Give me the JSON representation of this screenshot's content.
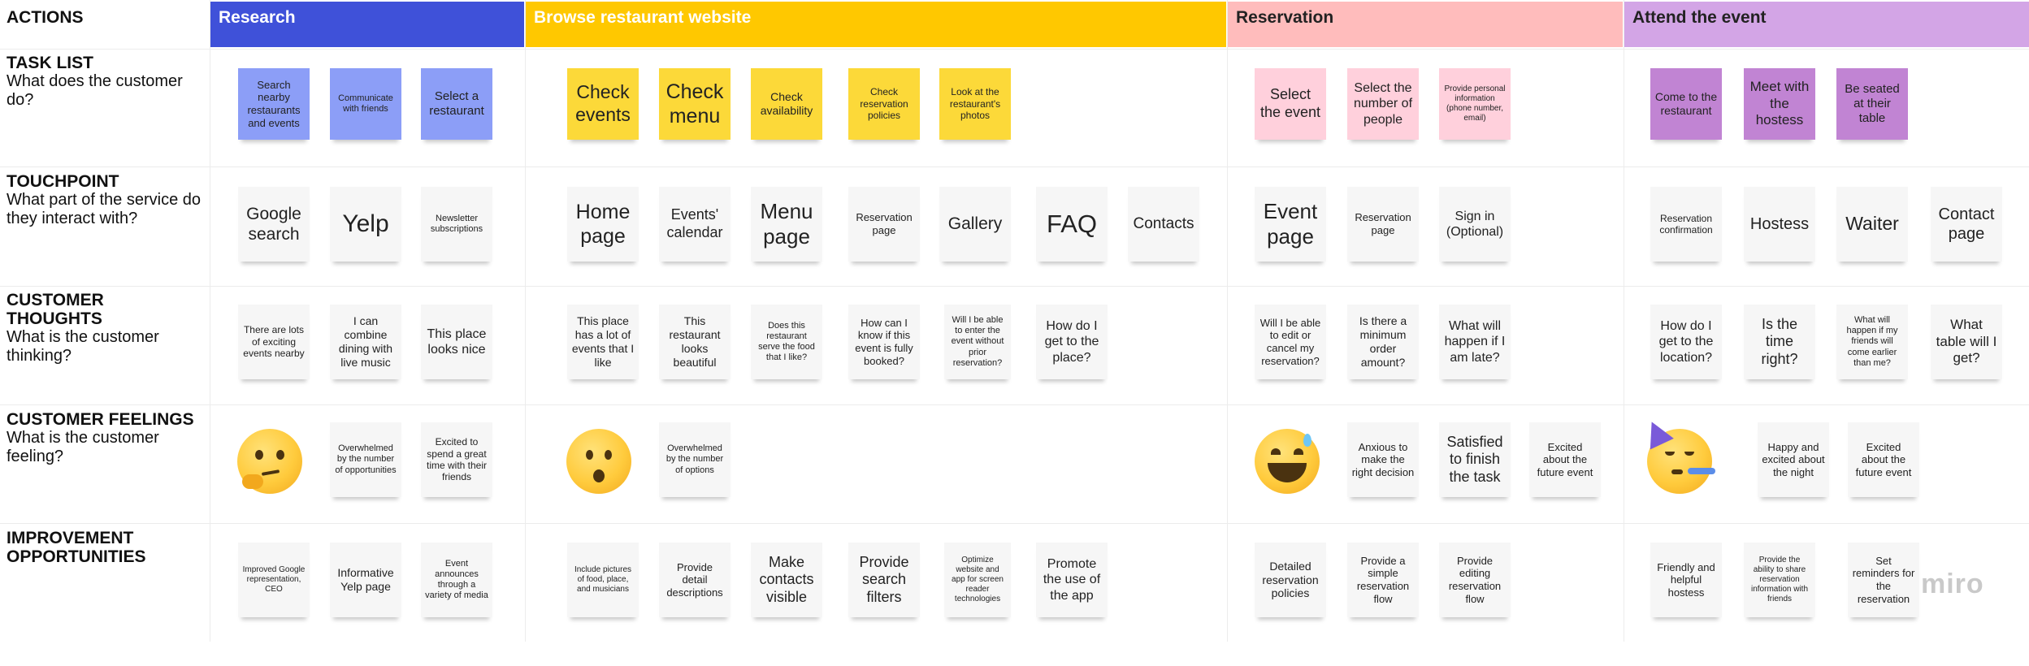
{
  "header": {
    "actions_label": "ACTIONS"
  },
  "stages": [
    {
      "id": "research",
      "label": "Research",
      "bg": "#3f51d9",
      "color": "#ffffff"
    },
    {
      "id": "browse",
      "label": "Browse restaurant website",
      "bg": "#ffc800",
      "color": "#ffffff"
    },
    {
      "id": "reservation",
      "label": "Reservation",
      "bg": "#ffbcbc",
      "color": "#222222"
    },
    {
      "id": "attend",
      "label": "Attend the event",
      "bg": "#d3a5e6",
      "color": "#222222"
    }
  ],
  "rows": [
    {
      "id": "task",
      "title": "TASK LIST",
      "subtitle": "What does the customer do?"
    },
    {
      "id": "touch",
      "title": "TOUCHPOINT",
      "subtitle": "What part of the service do they interact with?"
    },
    {
      "id": "thoughts",
      "title": "CUSTOMER THOUGHTS",
      "subtitle": "What is the customer thinking?"
    },
    {
      "id": "feelings",
      "title": "CUSTOMER FEELINGS",
      "subtitle": "What is the customer feeling?"
    },
    {
      "id": "improve",
      "title": "IMPROVEMENT OPPORTUNITIES",
      "subtitle": ""
    }
  ],
  "colors": {
    "research_sticky": "#8c9ef7",
    "browse_sticky": "#fcd939",
    "reservation_sticky": "#ffd0dc",
    "attend_sticky": "#c184d3",
    "neutral_sticky": "#f6f6f6"
  },
  "task": {
    "research": [
      "Search nearby restaurants and events",
      "Communicate with friends",
      "Select a restaurant"
    ],
    "browse": [
      "Check events",
      "Check menu",
      "Check availability",
      "Check reservation policies",
      "Look at the restaurant's photos"
    ],
    "reservation": [
      "Select the event",
      "Select the number of people",
      "Provide personal information (phone number, email)"
    ],
    "attend": [
      "Come to the restaurant",
      "Meet with the hostess",
      "Be seated at their table"
    ]
  },
  "touch": {
    "research": [
      "Google search",
      "Yelp",
      "Newsletter subscriptions"
    ],
    "browse": [
      "Home page",
      "Events' calendar",
      "Menu page",
      "Reservation page",
      "Gallery",
      "FAQ",
      "Contacts"
    ],
    "reservation": [
      "Event page",
      "Reservation page",
      "Sign in (Optional)"
    ],
    "attend": [
      "Reservation confirmation",
      "Hostess",
      "Waiter",
      "Contact page"
    ]
  },
  "thoughts": {
    "research": [
      "There are lots of exciting events nearby",
      "I can combine dining with live music",
      "This place looks nice"
    ],
    "browse": [
      "This place has a lot of events that I like",
      "This restaurant looks beautiful",
      "Does this restaurant serve the food that I like?",
      "How can I know if this event is fully booked?",
      "Will I be able to enter the event without prior reservation?",
      "How do I get to the place?"
    ],
    "reservation": [
      "Will I be able to edit or cancel my reservation?",
      "Is there a minimum order amount?",
      "What will happen if I am late?"
    ],
    "attend": [
      "How do I get to the location?",
      "Is the time right?",
      "What will happen if my friends will come earlier than me?",
      "What table will I get?"
    ]
  },
  "feelings": {
    "research": [
      "Overwhelmed by the number of opportunities",
      "Excited to spend a great time with their friends"
    ],
    "browse": [
      "Overwhelmed by the number of options"
    ],
    "reservation": [
      "Anxious to make the right decision",
      "Satisfied to finish the task",
      "Excited about the future event"
    ],
    "attend": [
      "Happy and excited about the night",
      "Excited about the future event"
    ],
    "emojis": [
      "thinking-face-emoji",
      "hushed-face-emoji",
      "grinning-sweat-face-emoji",
      "partying-face-emoji"
    ]
  },
  "improve": {
    "research": [
      "Improved Google representation, CEO",
      "Informative Yelp page",
      "Event announces through a variety of media"
    ],
    "browse": [
      "Include pictures of food, place, and musicians",
      "Provide detail descriptions",
      "Make contacts visible",
      "Provide search filters",
      "Optimize website and app for screen reader technologies",
      "Promote the use of the app"
    ],
    "reservation": [
      "Detailed reservation policies",
      "Provide a simple reservation flow",
      "Provide editing reservation flow"
    ],
    "attend": [
      "Friendly and helpful hostess",
      "Provide the ability to share reservation information with friends",
      "Set reminders for the reservation"
    ]
  },
  "watermark": "miro"
}
